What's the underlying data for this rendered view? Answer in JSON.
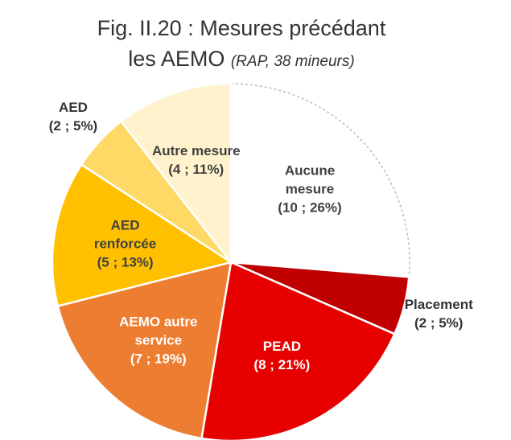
{
  "chart_data": {
    "type": "pie",
    "title": "Fig. II.20 : Mesures précédant",
    "title_line2": "les AEMO",
    "subtitle": "(RAP, 38 mineurs)",
    "categories": [
      "Aucune mesure",
      "Placement",
      "PEAD",
      "AEMO autre service",
      "AED renforcée",
      "AED",
      "Autre mesure"
    ],
    "values": [
      10,
      2,
      8,
      7,
      5,
      2,
      4
    ],
    "value_labels": [
      "(10 ; 26%)",
      "(2 ; 5%)",
      "(8 ; 21%)",
      "(7 ; 19%)",
      "(5 ; 13%)",
      "(2 ; 5%)",
      "(4 ; 11%)"
    ],
    "colors": [
      "#ffffff",
      "#c00000",
      "#e60000",
      "#ed7d31",
      "#ffc000",
      "#ffd966",
      "#fff2cc"
    ],
    "label_colors": [
      "#404040",
      "#404040",
      "#ffffff",
      "#ffffff",
      "#404040",
      "#404040",
      "#404040"
    ]
  }
}
